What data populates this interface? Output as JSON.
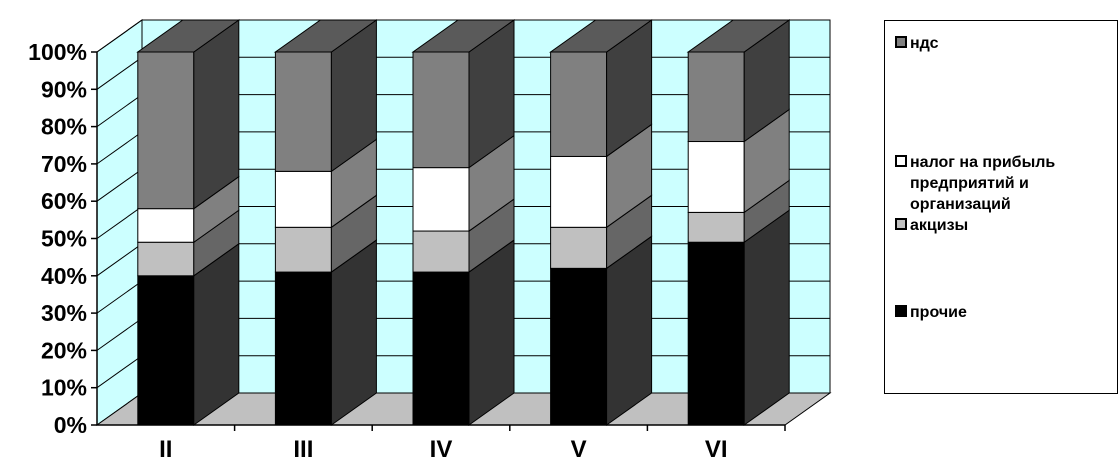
{
  "chart_data": {
    "type": "bar",
    "stacked": true,
    "three_d": true,
    "ylim": [
      0,
      100
    ],
    "y_tick_labels": [
      "0%",
      "10%",
      "20%",
      "30%",
      "40%",
      "50%",
      "60%",
      "70%",
      "80%",
      "90%",
      "100%"
    ],
    "categories": [
      "II",
      "III",
      "IV",
      "V",
      "VI"
    ],
    "series": [
      {
        "name": "прочие",
        "color": "#000000",
        "side_color": "#333333",
        "values": [
          40,
          41,
          41,
          42,
          49
        ]
      },
      {
        "name": "акцизы",
        "color": "#c0c0c0",
        "side_color": "#666666",
        "values": [
          9,
          12,
          11,
          11,
          8
        ]
      },
      {
        "name": "налог на прибыль предприятий и организаций",
        "color": "#ffffff",
        "side_color": "#808080",
        "values": [
          9,
          15,
          17,
          19,
          19
        ]
      },
      {
        "name": "ндс",
        "color": "#808080",
        "side_color": "#404040",
        "values": [
          42,
          32,
          31,
          28,
          24
        ]
      }
    ],
    "wall_color": "#ccffff",
    "floor_color": "#c0c0c0",
    "gridlines": true,
    "legend_position": "right"
  },
  "legend": {
    "items": [
      {
        "label": "ндс",
        "color": "#808080"
      },
      {
        "label": "налог на прибыль\nпредприятий и\nорганизаций",
        "color": "#ffffff"
      },
      {
        "label": "акцизы",
        "color": "#c0c0c0"
      },
      {
        "label": "прочие",
        "color": "#000000"
      }
    ]
  }
}
